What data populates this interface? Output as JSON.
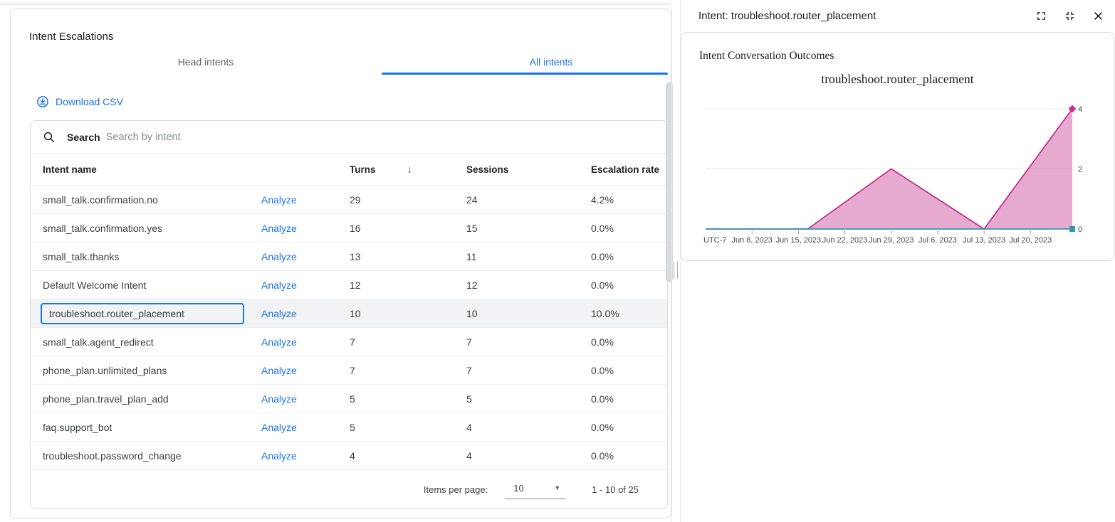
{
  "left_panel": {
    "title": "Intent Escalations",
    "tabs": [
      {
        "label": "Head intents",
        "active": false
      },
      {
        "label": "All intents",
        "active": true
      }
    ],
    "download_csv_label": "Download CSV",
    "search": {
      "label": "Search",
      "placeholder": "Search by intent"
    },
    "table": {
      "columns": [
        "Intent name",
        "Turns",
        "Sessions",
        "Escalation rate"
      ],
      "analyze_label": "Analyze",
      "sort": {
        "column": "Turns",
        "direction": "desc"
      },
      "rows": [
        {
          "intent": "small_talk.confirmation.no",
          "turns": "29",
          "sessions": "24",
          "escalation_rate": "4.2%",
          "selected": false
        },
        {
          "intent": "small_talk.confirmation.yes",
          "turns": "16",
          "sessions": "15",
          "escalation_rate": "0.0%",
          "selected": false
        },
        {
          "intent": "small_talk.thanks",
          "turns": "13",
          "sessions": "11",
          "escalation_rate": "0.0%",
          "selected": false
        },
        {
          "intent": "Default Welcome Intent",
          "turns": "12",
          "sessions": "12",
          "escalation_rate": "0.0%",
          "selected": false
        },
        {
          "intent": "troubleshoot.router_placement",
          "turns": "10",
          "sessions": "10",
          "escalation_rate": "10.0%",
          "selected": true
        },
        {
          "intent": "small_talk.agent_redirect",
          "turns": "7",
          "sessions": "7",
          "escalation_rate": "0.0%",
          "selected": false
        },
        {
          "intent": "phone_plan.unlimited_plans",
          "turns": "7",
          "sessions": "7",
          "escalation_rate": "0.0%",
          "selected": false
        },
        {
          "intent": "phone_plan.travel_plan_add",
          "turns": "5",
          "sessions": "5",
          "escalation_rate": "0.0%",
          "selected": false
        },
        {
          "intent": "faq.support_bot",
          "turns": "5",
          "sessions": "4",
          "escalation_rate": "0.0%",
          "selected": false
        },
        {
          "intent": "troubleshoot.password_change",
          "turns": "4",
          "sessions": "4",
          "escalation_rate": "0.0%",
          "selected": false
        }
      ],
      "pagination": {
        "items_per_page_label": "Items per page:",
        "items_per_page_value": "10",
        "range_label": "1 - 10 of 25"
      }
    }
  },
  "right_panel": {
    "title": "Intent: troubleshoot.router_placement",
    "card_title": "Intent Conversation Outcomes"
  },
  "icons": {
    "download-icon": "circle-with-down-arrow",
    "search-icon": "magnifying-glass",
    "sort-desc-icon": "↓",
    "dropdown-caret-icon": "▼",
    "fullscreen-icon": "expand-corner-brackets",
    "fullscreen-exit-icon": "collapse-corner-brackets",
    "close-icon": "✕"
  },
  "colors": {
    "accent_blue": "#1a73e8",
    "series_pink": "#c4318f",
    "series_teal": "#3599ab",
    "selected_row_bg": "#f1f3f4",
    "grid_line": "#e8e8e8"
  },
  "chart_data": {
    "type": "area",
    "title": "troubleshoot.router_placement",
    "timezone_label": "UTC-7",
    "x_axis": {
      "unit": "weeks since Jun 1, 2023",
      "xlim": [
        0,
        7.9
      ],
      "tick_x": [
        1,
        2,
        3,
        4,
        5,
        6,
        7
      ],
      "tick_labels": [
        "Jun 8, 2023",
        "Jun 15, 2023",
        "Jun 22, 2023",
        "Jun 29, 2023",
        "Jul 6, 2023",
        "Jul 13, 2023",
        "Jul 20, 2023"
      ]
    },
    "y_axis": {
      "ylim": [
        0,
        4
      ],
      "ticks": [
        0,
        2,
        4
      ],
      "side": "right"
    },
    "grid": true,
    "legend": false,
    "series": [
      {
        "name": "series-1-pink",
        "color": "#c4318f",
        "marker": "diamond",
        "fill_opacity": 0.42,
        "points": [
          [
            0,
            0
          ],
          [
            2.2,
            0
          ],
          [
            4,
            2
          ],
          [
            6,
            0
          ],
          [
            7.9,
            4
          ]
        ]
      },
      {
        "name": "series-2-teal",
        "color": "#3599ab",
        "marker": "square",
        "fill_opacity": 0,
        "points": [
          [
            0,
            0
          ],
          [
            7.9,
            0
          ]
        ]
      }
    ]
  }
}
